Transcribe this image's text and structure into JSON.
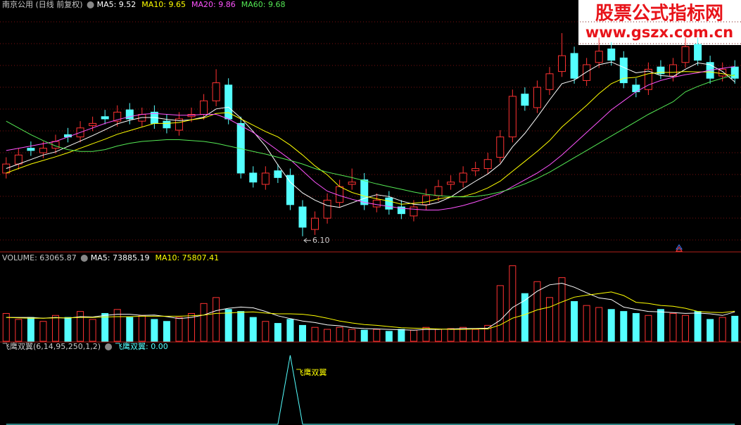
{
  "watermark": {
    "title": "股票公式指标网",
    "url": "www.gszx.com.cn"
  },
  "chart_data": [
    {
      "type": "candlestick",
      "title": "南京公用 (日线 前复权)",
      "up_color": "#ff3232",
      "down_color": "#54ffff",
      "ylim": [
        5.8,
        11.1
      ],
      "open": [
        7.5,
        7.7,
        8.05,
        7.95,
        8.05,
        8.35,
        8.3,
        8.55,
        8.75,
        8.65,
        8.9,
        8.65,
        8.85,
        8.65,
        8.45,
        8.75,
        8.8,
        9.1,
        9.45,
        8.6,
        7.5,
        7.25,
        7.55,
        7.45,
        6.75,
        6.25,
        6.5,
        6.85,
        7.25,
        7.35,
        6.75,
        6.95,
        6.75,
        6.55,
        6.8,
        7.0,
        7.25,
        7.3,
        7.55,
        7.6,
        7.85,
        8.3,
        9.25,
        8.95,
        9.35,
        9.75,
        10.15,
        9.55,
        9.95,
        10.25,
        10.05,
        9.45,
        9.35,
        9.85,
        9.65,
        9.95,
        10.35,
        9.95,
        9.65,
        9.85
      ],
      "high": [
        7.85,
        8.05,
        8.2,
        8.2,
        8.35,
        8.5,
        8.65,
        8.75,
        8.9,
        9.0,
        9.05,
        8.95,
        9.0,
        8.8,
        8.85,
        8.95,
        9.25,
        9.8,
        9.6,
        8.75,
        7.65,
        7.65,
        7.7,
        7.6,
        6.9,
        6.65,
        7.05,
        7.35,
        7.6,
        7.5,
        7.05,
        7.1,
        6.9,
        6.9,
        7.15,
        7.35,
        7.45,
        7.65,
        7.75,
        7.95,
        8.45,
        9.35,
        9.4,
        9.55,
        9.85,
        10.6,
        10.3,
        10.05,
        10.5,
        10.4,
        10.2,
        9.6,
        9.95,
        10.0,
        10.05,
        10.5,
        10.5,
        10.1,
        9.95,
        10.0
      ],
      "low": [
        7.38,
        7.58,
        7.88,
        7.83,
        7.93,
        8.18,
        8.18,
        8.43,
        8.58,
        8.53,
        8.58,
        8.53,
        8.48,
        8.38,
        8.33,
        8.63,
        8.68,
        8.98,
        8.58,
        7.38,
        7.18,
        7.13,
        7.28,
        6.68,
        6.1,
        6.13,
        6.38,
        6.73,
        7.13,
        6.68,
        6.63,
        6.58,
        6.48,
        6.43,
        6.68,
        6.88,
        7.13,
        7.18,
        7.43,
        7.48,
        7.73,
        8.18,
        8.88,
        8.83,
        9.23,
        9.63,
        9.48,
        9.43,
        9.83,
        9.88,
        9.38,
        9.18,
        9.23,
        9.58,
        9.53,
        9.83,
        9.88,
        9.48,
        9.53,
        9.48
      ],
      "close": [
        7.7,
        7.9,
        8.0,
        8.05,
        8.2,
        8.3,
        8.5,
        8.6,
        8.7,
        8.85,
        8.7,
        8.8,
        8.6,
        8.5,
        8.7,
        8.8,
        9.1,
        9.5,
        8.7,
        7.5,
        7.3,
        7.5,
        7.4,
        6.8,
        6.3,
        6.5,
        6.9,
        7.2,
        7.3,
        6.8,
        6.9,
        6.7,
        6.6,
        6.75,
        7.0,
        7.2,
        7.3,
        7.5,
        7.6,
        7.8,
        8.3,
        9.2,
        9.0,
        9.4,
        9.7,
        10.1,
        9.6,
        9.9,
        10.2,
        10.0,
        9.5,
        9.3,
        9.8,
        9.7,
        9.9,
        10.3,
        10.0,
        9.6,
        9.8,
        9.6
      ],
      "series": [
        {
          "name": "MA5: 9.52",
          "color": "#ffffff",
          "values": [
            7.6,
            7.7,
            7.8,
            7.9,
            7.97,
            8.09,
            8.21,
            8.33,
            8.46,
            8.59,
            8.67,
            8.73,
            8.73,
            8.69,
            8.66,
            8.68,
            8.74,
            8.92,
            8.96,
            8.72,
            8.42,
            8.1,
            7.68,
            7.3,
            7.06,
            6.9,
            6.78,
            6.74,
            6.84,
            6.94,
            7.02,
            6.98,
            6.88,
            6.81,
            6.79,
            6.85,
            6.97,
            7.15,
            7.32,
            7.48,
            7.7,
            8.08,
            8.38,
            8.74,
            9.12,
            9.48,
            9.56,
            9.74,
            9.9,
            9.96,
            9.84,
            9.72,
            9.76,
            9.66,
            9.64,
            9.8,
            9.94,
            9.9,
            9.75,
            9.52
          ]
        },
        {
          "name": "MA10: 9.65",
          "color": "#ffff00",
          "values": [
            7.5,
            7.6,
            7.7,
            7.78,
            7.86,
            7.95,
            8.05,
            8.15,
            8.25,
            8.36,
            8.44,
            8.52,
            8.6,
            8.6,
            8.62,
            8.68,
            8.72,
            8.82,
            8.84,
            8.7,
            8.56,
            8.42,
            8.3,
            8.12,
            7.9,
            7.66,
            7.46,
            7.2,
            7.07,
            6.99,
            6.93,
            6.88,
            6.81,
            6.83,
            6.86,
            6.93,
            6.97,
            6.98,
            7.06,
            7.17,
            7.32,
            7.54,
            7.76,
            7.98,
            8.22,
            8.52,
            8.76,
            9.0,
            9.26,
            9.48,
            9.6,
            9.62,
            9.7,
            9.73,
            9.73,
            9.75,
            9.74,
            9.74,
            9.7,
            9.65
          ]
        },
        {
          "name": "MA20: 9.86",
          "color": "#ff54ff",
          "values": [
            8.0,
            8.05,
            8.1,
            8.15,
            8.2,
            8.3,
            8.4,
            8.5,
            8.6,
            8.68,
            8.75,
            8.8,
            8.82,
            8.8,
            8.78,
            8.78,
            8.8,
            8.8,
            8.7,
            8.55,
            8.4,
            8.2,
            8.0,
            7.8,
            7.55,
            7.3,
            7.1,
            7.0,
            6.92,
            6.85,
            6.8,
            6.76,
            6.72,
            6.7,
            6.68,
            6.68,
            6.72,
            6.78,
            6.86,
            6.95,
            7.05,
            7.2,
            7.35,
            7.5,
            7.68,
            7.9,
            8.15,
            8.4,
            8.65,
            8.9,
            9.1,
            9.3,
            9.45,
            9.55,
            9.62,
            9.68,
            9.72,
            9.78,
            9.82,
            9.86
          ]
        },
        {
          "name": "MA60: 9.68",
          "color": "#54e854",
          "values": [
            8.65,
            8.5,
            8.35,
            8.22,
            8.1,
            8.02,
            7.98,
            7.98,
            8.02,
            8.1,
            8.16,
            8.2,
            8.22,
            8.24,
            8.24,
            8.22,
            8.2,
            8.16,
            8.1,
            8.04,
            7.98,
            7.92,
            7.85,
            7.78,
            7.7,
            7.6,
            7.52,
            7.46,
            7.4,
            7.33,
            7.26,
            7.2,
            7.14,
            7.08,
            7.03,
            7.0,
            6.98,
            6.97,
            6.98,
            7.02,
            7.08,
            7.16,
            7.26,
            7.38,
            7.52,
            7.68,
            7.84,
            8.0,
            8.16,
            8.32,
            8.48,
            8.64,
            8.8,
            8.94,
            9.08,
            9.3,
            9.42,
            9.52,
            9.6,
            9.68
          ]
        }
      ],
      "annotations": [
        {
          "label": "6.10",
          "value": 6.1
        }
      ]
    },
    {
      "type": "bar",
      "title": "VOLUME: 63065.87",
      "ylim": [
        0,
        200000
      ],
      "values": [
        70000,
        55000,
        60000,
        50000,
        65000,
        60000,
        75000,
        55000,
        70000,
        80000,
        60000,
        65000,
        55000,
        50000,
        60000,
        70000,
        95000,
        110000,
        80000,
        75000,
        60000,
        50000,
        45000,
        55000,
        40000,
        35000,
        30000,
        35000,
        30000,
        28000,
        30000,
        25000,
        30000,
        28000,
        35000,
        30000,
        32000,
        35000,
        30000,
        40000,
        140000,
        190000,
        120000,
        150000,
        110000,
        160000,
        100000,
        90000,
        85000,
        80000,
        75000,
        70000,
        65000,
        80000,
        70000,
        65000,
        75000,
        55000,
        60000,
        63065.87
      ],
      "series": [
        {
          "name": "MA5: 73885.19",
          "color": "#ffffff",
          "values": [
            60000,
            60000,
            60000,
            58000,
            60000,
            58000,
            62000,
            61000,
            65000,
            68000,
            68000,
            65000,
            66000,
            62000,
            57000,
            60000,
            66000,
            77000,
            83000,
            86000,
            84000,
            75000,
            64000,
            57000,
            51000,
            47000,
            41000,
            39000,
            34000,
            32000,
            31000,
            30000,
            29000,
            28000,
            30000,
            30000,
            31000,
            32000,
            32000,
            33000,
            53000,
            85000,
            103000,
            126000,
            142000,
            146000,
            136000,
            122000,
            109000,
            105000,
            86000,
            80000,
            75000,
            74000,
            72000,
            70000,
            71000,
            69000,
            65000,
            73885.19
          ]
        },
        {
          "name": "MA10: 75807.41",
          "color": "#ffff00",
          "values": [
            60000,
            59000,
            58000,
            58000,
            59000,
            59000,
            60000,
            60000,
            61000,
            62000,
            62000,
            63000,
            63000,
            63000,
            63000,
            64000,
            66000,
            70000,
            71000,
            73000,
            74000,
            71000,
            69000,
            69000,
            68000,
            64000,
            58000,
            51000,
            46000,
            42000,
            40000,
            37000,
            34000,
            33000,
            32000,
            31000,
            30000,
            30000,
            31000,
            31000,
            41000,
            58000,
            67000,
            79000,
            86000,
            99000,
            111000,
            116000,
            120000,
            124000,
            115000,
            98000,
            95000,
            90000,
            88000,
            83000,
            75000,
            73000,
            72000,
            75807.41
          ]
        }
      ]
    },
    {
      "type": "line",
      "title": "飞鹰双翼(6,14,95,250,1,2)",
      "ylim": [
        0,
        1
      ],
      "series": [
        {
          "name": "飞鹰双翼: 0.00",
          "color": "#54ffff",
          "values": [
            0,
            0,
            0,
            0,
            0,
            0,
            0,
            0,
            0,
            0,
            0,
            0,
            0,
            0,
            0,
            0,
            0,
            0,
            0,
            0,
            0,
            0,
            0,
            1,
            0,
            0,
            0,
            0,
            0,
            0,
            0,
            0,
            0,
            0,
            0,
            0,
            0,
            0,
            0,
            0,
            0,
            0,
            0,
            0,
            0,
            0,
            0,
            0,
            0,
            0,
            0,
            0,
            0,
            0,
            0,
            0,
            0,
            0,
            0,
            0
          ]
        }
      ],
      "annotation": "飞鹰双翼"
    }
  ]
}
